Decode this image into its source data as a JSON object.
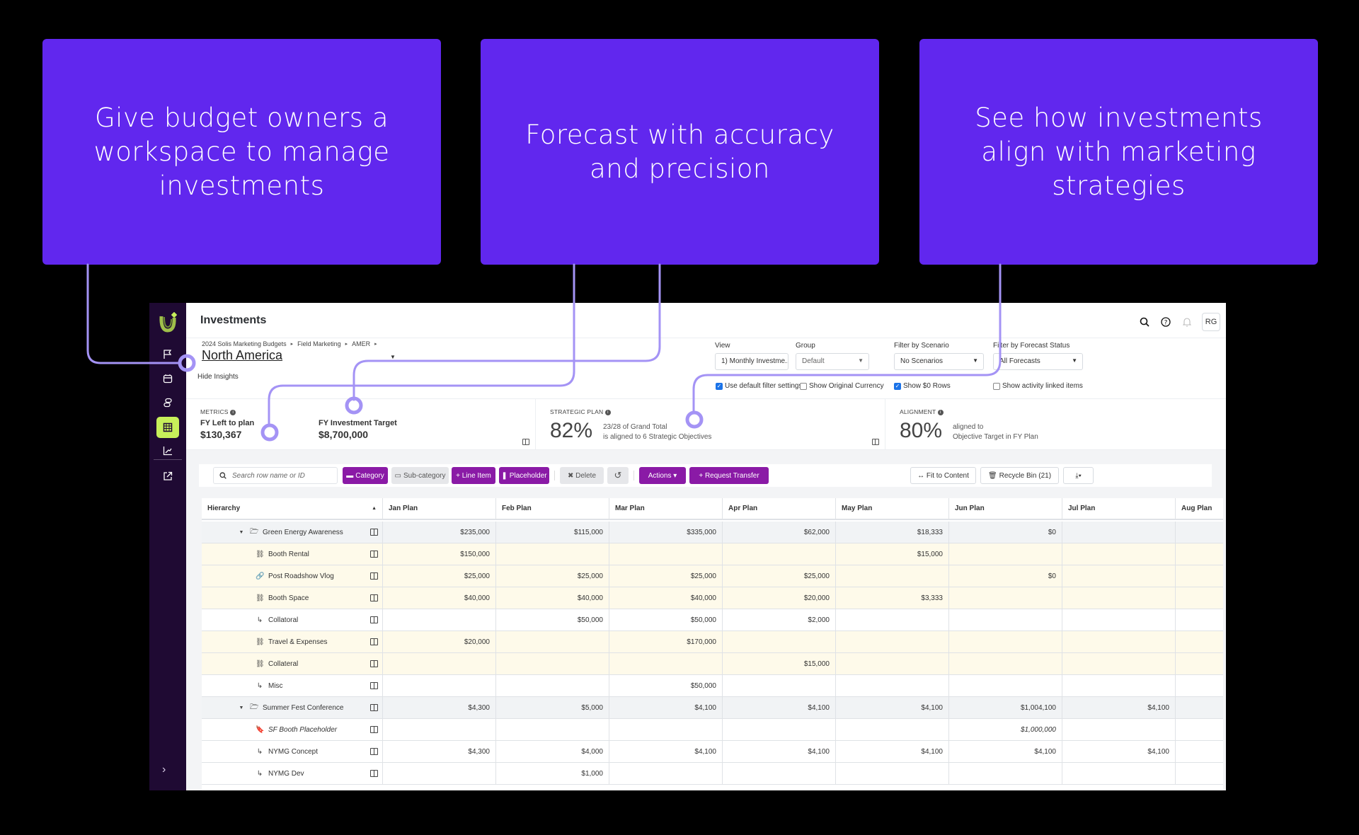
{
  "callouts": [
    {
      "text": "Give budget owners a workspace to manage investments"
    },
    {
      "text": "Forecast with accuracy and precision"
    },
    {
      "text": "See how investments align with marketing strategies"
    }
  ],
  "colors": {
    "callout_bg": "#6127ee",
    "connector": "#9b8cf0",
    "sidebar_bg": "#1f0a33",
    "sidebar_active": "#c7ef5a",
    "button_purple": "#8a1aa6",
    "category_row": "#f1f3f5",
    "line_item_row": "#fefaea"
  },
  "sidebar": {
    "items": [
      {
        "icon": "flag-icon"
      },
      {
        "icon": "calendar-icon"
      },
      {
        "icon": "stack-icon"
      },
      {
        "icon": "grid-table-icon",
        "active": true
      },
      {
        "icon": "chart-growth-icon"
      },
      {
        "icon": "external-link-icon"
      }
    ],
    "expand": "›"
  },
  "header": {
    "title": "Investments",
    "avatar": "RG"
  },
  "breadcrumb": [
    "2024 Solis Marketing Budgets",
    "Field Marketing",
    "AMER"
  ],
  "entity": {
    "title": "North America",
    "hide_insights": "Hide Insights"
  },
  "filters": {
    "view": {
      "label": "View",
      "value": "1) Monthly Investme..."
    },
    "group": {
      "label": "Group",
      "value": "Default"
    },
    "scenario": {
      "label": "Filter by Scenario",
      "value": "No Scenarios"
    },
    "forecast": {
      "label": "Filter by Forecast Status",
      "value": "All Forecasts"
    }
  },
  "checkboxes": [
    {
      "label": "Use default filter settings",
      "checked": true
    },
    {
      "label": "Show Original Currency",
      "checked": false
    },
    {
      "label": "Show $0 Rows",
      "checked": true
    },
    {
      "label": "Show activity linked items",
      "checked": false
    }
  ],
  "insights": {
    "metrics": {
      "label": "METRICS",
      "left_to_plan_label": "FY Left to plan",
      "left_to_plan_value": "$130,367",
      "target_label": "FY Investment Target",
      "target_value": "$8,700,000"
    },
    "strategic_plan": {
      "label": "STRATEGIC PLAN",
      "percent": "82%",
      "line1": "23/28 of Grand Total",
      "line2": "is aligned to 6 Strategic Objectives"
    },
    "alignment": {
      "label": "ALIGNMENT",
      "percent": "80%",
      "line1": "aligned to",
      "line2": "Objective Target in FY Plan"
    }
  },
  "toolbar": {
    "search_placeholder": "Search row name or ID",
    "category": "Category",
    "subcategory": "Sub-category",
    "line_item": "+ Line Item",
    "placeholder": "Placeholder",
    "delete": "✖ Delete",
    "undo": "↺",
    "actions": "Actions ▾",
    "request_transfer": "+ Request Transfer",
    "fit_to_content": "↔ Fit to Content",
    "recycle_bin": "Recycle Bin (21)",
    "download": "⤓▾"
  },
  "table": {
    "columns": [
      "Hierarchy",
      "Jan Plan",
      "Feb Plan",
      "Mar Plan",
      "Apr Plan",
      "May Plan",
      "Jun Plan",
      "Jul Plan",
      "Aug Plan"
    ],
    "rows": [
      {
        "type": "cat",
        "icon": "folder-open-icon",
        "name": "Green Energy Awareness",
        "values": [
          "$235,000",
          "$115,000",
          "$335,000",
          "$62,000",
          "$18,333",
          "$0",
          "",
          ""
        ]
      },
      {
        "type": "line",
        "icon": "hierarchy-icon",
        "name": "Booth Rental",
        "values": [
          "$150,000",
          "",
          "",
          "",
          "$15,000",
          "",
          "",
          ""
        ]
      },
      {
        "type": "line",
        "icon": "link-icon",
        "name": "Post Roadshow Vlog",
        "values": [
          "$25,000",
          "$25,000",
          "$25,000",
          "$25,000",
          "",
          "$0",
          "",
          ""
        ]
      },
      {
        "type": "line",
        "icon": "hierarchy-icon",
        "name": "Booth Space",
        "values": [
          "$40,000",
          "$40,000",
          "$40,000",
          "$20,000",
          "$3,333",
          "",
          "",
          ""
        ]
      },
      {
        "type": "plain",
        "icon": "subitem-arrow-icon",
        "name": "Collatoral",
        "values": [
          "",
          "$50,000",
          "$50,000",
          "$2,000",
          "",
          "",
          "",
          ""
        ]
      },
      {
        "type": "line",
        "icon": "hierarchy-icon",
        "name": "Travel & Expenses",
        "values": [
          "$20,000",
          "",
          "$170,000",
          "",
          "",
          "",
          "",
          ""
        ]
      },
      {
        "type": "line",
        "icon": "hierarchy-icon",
        "name": "Collateral",
        "values": [
          "",
          "",
          "",
          "$15,000",
          "",
          "",
          "",
          ""
        ]
      },
      {
        "type": "plain",
        "icon": "subitem-arrow-icon",
        "name": "Misc",
        "values": [
          "",
          "",
          "$50,000",
          "",
          "",
          "",
          "",
          ""
        ]
      },
      {
        "type": "cat",
        "icon": "folder-open-icon",
        "name": "Summer Fest Conference",
        "values": [
          "$4,300",
          "$5,000",
          "$4,100",
          "$4,100",
          "$4,100",
          "$1,004,100",
          "$4,100",
          ""
        ]
      },
      {
        "type": "plain",
        "icon": "bookmark-icon",
        "name": "SF Booth Placeholder",
        "italic": true,
        "values": [
          "",
          "",
          "",
          "",
          "",
          "$1,000,000",
          "",
          ""
        ]
      },
      {
        "type": "plain",
        "icon": "subitem-arrow-icon",
        "name": "NYMG Concept",
        "values": [
          "$4,300",
          "$4,000",
          "$4,100",
          "$4,100",
          "$4,100",
          "$4,100",
          "$4,100",
          ""
        ]
      },
      {
        "type": "plain",
        "icon": "subitem-arrow-icon",
        "name": "NYMG Dev",
        "values": [
          "",
          "$1,000",
          "",
          "",
          "",
          "",
          "",
          ""
        ]
      }
    ]
  }
}
